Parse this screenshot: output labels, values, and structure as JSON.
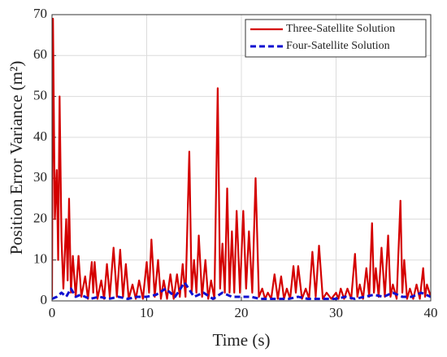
{
  "chart_data": {
    "type": "line",
    "xlabel": "Time (s)",
    "ylabel": "Position Error Variance (m²)",
    "xlim": [
      0,
      40
    ],
    "ylim": [
      0,
      70
    ],
    "xticks": [
      0,
      10,
      20,
      30,
      40
    ],
    "yticks": [
      0,
      10,
      20,
      30,
      40,
      50,
      60,
      70
    ],
    "grid": true,
    "legend": "upper right",
    "series": [
      {
        "name": "Three-Satellite Solution",
        "color": "#d40000",
        "dash": "solid",
        "x": [
          0,
          0.1,
          0.3,
          0.5,
          0.65,
          0.8,
          1.0,
          1.2,
          1.5,
          1.65,
          1.8,
          2.0,
          2.2,
          2.5,
          2.8,
          3.1,
          3.5,
          3.8,
          4.2,
          4.35,
          4.5,
          4.8,
          5.2,
          5.5,
          5.8,
          6.1,
          6.5,
          6.85,
          7.2,
          7.5,
          7.8,
          8.1,
          8.5,
          8.85,
          9.2,
          9.6,
          10,
          10.25,
          10.5,
          10.85,
          11.2,
          11.5,
          11.8,
          12.15,
          12.5,
          12.85,
          13.2,
          13.5,
          13.8,
          14.1,
          14.5,
          14.75,
          15,
          15.25,
          15.5,
          15.85,
          16.2,
          16.5,
          16.8,
          17.15,
          17.5,
          17.75,
          18,
          18.25,
          18.5,
          18.75,
          19,
          19.25,
          19.5,
          19.85,
          20.2,
          20.5,
          20.8,
          21.15,
          21.5,
          21.85,
          22.2,
          22.5,
          22.8,
          23.15,
          23.5,
          23.85,
          24.2,
          24.5,
          24.8,
          25.15,
          25.5,
          25.75,
          26,
          26.4,
          26.8,
          27.15,
          27.5,
          27.85,
          28.2,
          28.6,
          29,
          29.5,
          30,
          30.25,
          30.5,
          30.85,
          31.2,
          31.6,
          32,
          32.25,
          32.5,
          32.85,
          33.2,
          33.5,
          33.8,
          34,
          34.2,
          34.5,
          34.8,
          35.15,
          35.5,
          35.75,
          36,
          36.4,
          36.8,
          37,
          37.2,
          37.5,
          37.8,
          38.15,
          38.5,
          38.85,
          39.2,
          39.4,
          39.6,
          40
        ],
        "values": [
          1,
          69,
          20,
          32,
          10,
          50,
          15,
          3,
          20,
          5,
          25,
          2,
          11,
          1,
          11,
          1,
          6,
          0.5,
          9.5,
          2,
          9.5,
          0.5,
          5,
          0.5,
          9,
          1,
          13,
          1,
          12.5,
          1,
          9,
          0.5,
          4,
          0.5,
          5,
          0.5,
          9.5,
          2,
          15,
          1,
          10,
          0.5,
          5,
          0.5,
          6.5,
          0.5,
          6.5,
          1,
          9,
          1,
          36.5,
          2,
          10,
          2,
          16,
          1,
          10,
          0.5,
          5,
          0.5,
          52,
          3,
          14,
          2,
          27.5,
          2,
          17,
          2,
          22,
          2,
          22,
          3,
          17,
          2,
          30,
          1,
          3,
          0.5,
          2,
          0.5,
          6.5,
          0.5,
          6,
          0.5,
          3,
          0.5,
          8.5,
          2,
          8.5,
          0.5,
          3,
          0.5,
          12,
          1,
          13.5,
          0.5,
          2,
          0.5,
          2,
          0.5,
          3,
          0.5,
          3,
          0.5,
          11.5,
          1,
          4,
          0.5,
          8,
          1,
          19,
          2,
          8,
          1,
          13,
          1,
          16,
          1,
          4,
          0.5,
          24.5,
          2,
          10,
          0.5,
          3,
          0.5,
          4,
          0.5,
          8,
          1,
          4,
          1
        ]
      },
      {
        "name": "Four-Satellite Solution",
        "color": "#1010d0",
        "dash": "dashed",
        "x": [
          0,
          0.5,
          1,
          1.5,
          2,
          2.5,
          3,
          4,
          5,
          6,
          7,
          8,
          9,
          10,
          11,
          12,
          13,
          14,
          15,
          16,
          17,
          18,
          19,
          20,
          21,
          22,
          23,
          24,
          25,
          26,
          27,
          28,
          29,
          30,
          31,
          32,
          33,
          34,
          35,
          36,
          37,
          38,
          39,
          40
        ],
        "values": [
          0.5,
          1,
          2,
          1,
          3,
          1,
          1.5,
          0.5,
          1,
          0.5,
          1,
          0.5,
          1,
          1,
          1.5,
          3,
          1,
          4.5,
          1,
          2,
          0.5,
          2,
          1,
          1,
          1,
          0.5,
          0.5,
          0.5,
          0.5,
          1,
          0.5,
          0.5,
          0.5,
          0.5,
          1,
          0.5,
          1,
          1.5,
          1,
          2,
          1,
          1,
          2,
          1
        ]
      }
    ]
  }
}
